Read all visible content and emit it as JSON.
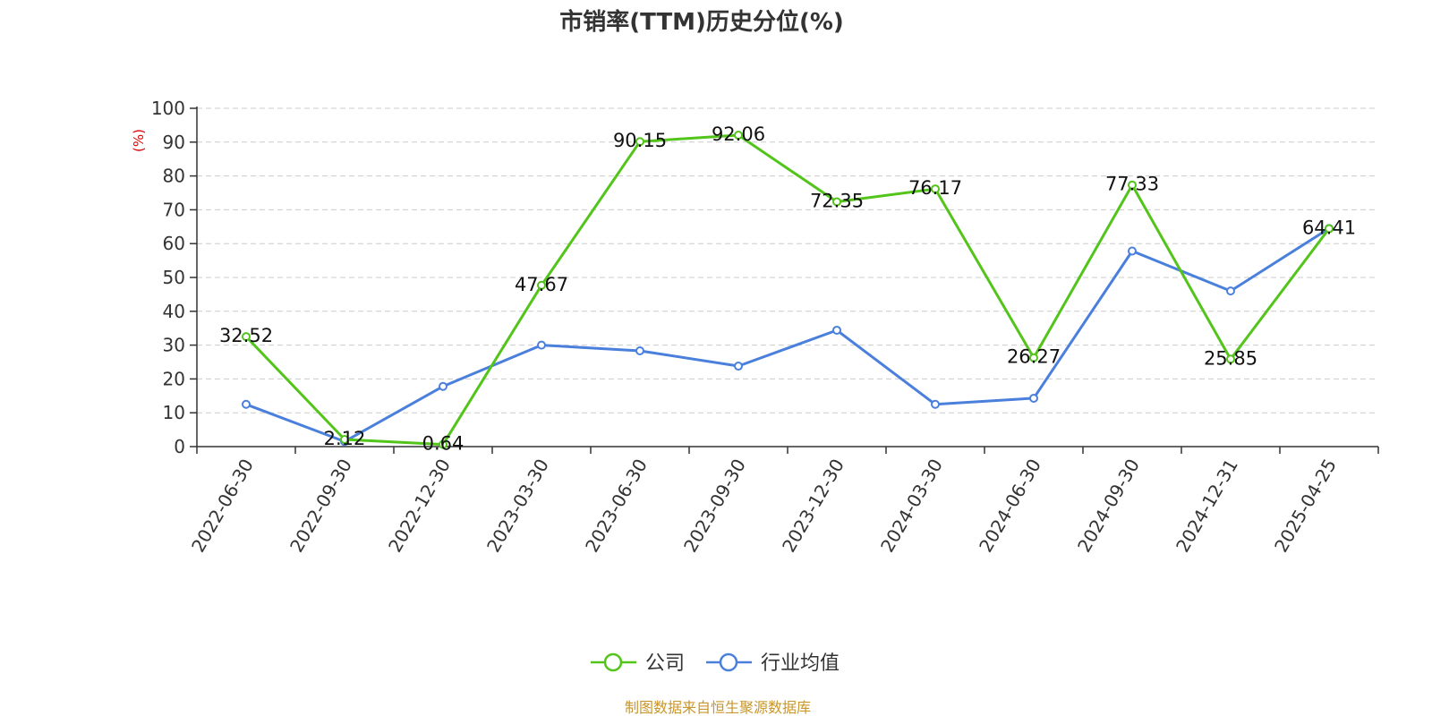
{
  "chart_data": {
    "type": "line",
    "title": "市销率(TTM)历史分位(%)",
    "ylabel": "(%)",
    "ylim": [
      0,
      100
    ],
    "yticks": [
      0,
      10,
      20,
      30,
      40,
      50,
      60,
      70,
      80,
      90,
      100
    ],
    "categories": [
      "2022-06-30",
      "2022-09-30",
      "2022-12-30",
      "2023-03-30",
      "2023-06-30",
      "2023-09-30",
      "2023-12-30",
      "2024-03-30",
      "2024-06-30",
      "2024-09-30",
      "2024-12-31",
      "2025-04-25"
    ],
    "series": [
      {
        "name": "公司",
        "color": "#52c41a",
        "values": [
          32.52,
          2.12,
          0.64,
          47.67,
          90.15,
          92.06,
          72.35,
          76.17,
          26.27,
          77.33,
          25.85,
          64.41
        ],
        "labels": [
          "32.52",
          "2.12",
          "0.64",
          "47.67",
          "90.15",
          "92.06",
          "72.35",
          "76.17",
          "26.27",
          "77.33",
          "25.85",
          "64.41"
        ]
      },
      {
        "name": "行业均值",
        "color": "#4a80dc",
        "values": [
          12.5,
          1.5,
          17.8,
          30.0,
          28.3,
          23.8,
          34.4,
          12.5,
          14.3,
          57.8,
          46.0,
          64.5
        ]
      }
    ],
    "grid": true,
    "legend_position": "bottom-center"
  },
  "source": "制图数据来自恒生聚源数据库",
  "colors": {
    "ylabel": "#e00000",
    "source": "#c8962a",
    "grid": "#cccccc",
    "axis": "#333333"
  }
}
